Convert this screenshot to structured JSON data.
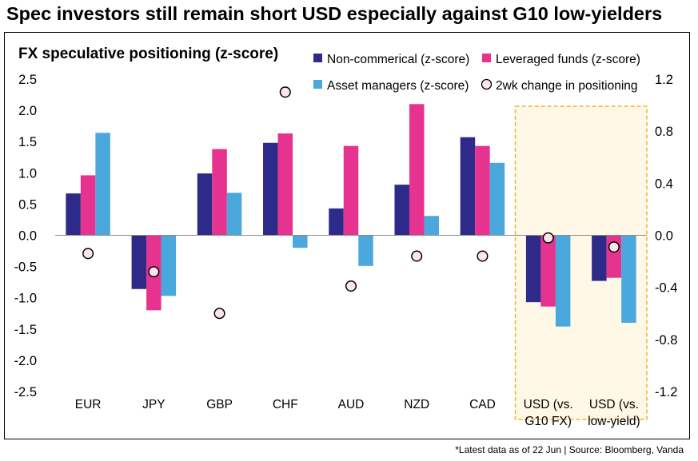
{
  "title": "Spec investors still remain short USD especially against G10 low-yielders",
  "footnote": "*Latest data as of 22 Jun | Source: Bloomberg, Vanda",
  "chart_data": {
    "type": "bar",
    "title": "FX speculative positioning (z-score)",
    "categories": [
      "EUR",
      "JPY",
      "GBP",
      "CHF",
      "AUD",
      "NZD",
      "CAD",
      "USD (vs. G10 FX)",
      "USD (vs. low-yield)"
    ],
    "category_lines": [
      [
        "EUR"
      ],
      [
        "JPY"
      ],
      [
        "GBP"
      ],
      [
        "CHF"
      ],
      [
        "AUD"
      ],
      [
        "NZD"
      ],
      [
        "CAD"
      ],
      [
        "USD (vs.",
        "G10 FX)"
      ],
      [
        "USD (vs.",
        "low-yield)"
      ]
    ],
    "series": [
      {
        "name": "Non-commerical (z-score)",
        "color": "#2e2a8a",
        "axis": "left",
        "values": [
          0.67,
          -0.86,
          0.99,
          1.48,
          0.43,
          0.81,
          1.57,
          -1.07,
          -0.73
        ]
      },
      {
        "name": "Leveraged funds (z-score)",
        "color": "#e5338f",
        "axis": "left",
        "values": [
          0.96,
          -1.2,
          1.38,
          1.63,
          1.43,
          2.1,
          1.43,
          -1.14,
          -0.68
        ]
      },
      {
        "name": "Asset managers (z-score)",
        "color": "#4ba8dc",
        "axis": "left",
        "values": [
          1.64,
          -0.97,
          0.68,
          -0.2,
          -0.49,
          0.31,
          1.16,
          -1.46,
          -1.4
        ]
      }
    ],
    "markers": {
      "name": "2wk change in positioning",
      "axis": "right",
      "values": [
        -0.14,
        -0.28,
        -0.6,
        1.1,
        -0.39,
        -0.16,
        -0.16,
        -0.02,
        -0.09
      ]
    },
    "left_axis": {
      "ylim": [
        -2.5,
        2.5
      ],
      "ticks": [
        "2.5",
        "2.0",
        "1.5",
        "1.0",
        "0.5",
        "0.0",
        "-0.5",
        "-1.0",
        "-1.5",
        "-2.0",
        "-2.5"
      ]
    },
    "right_axis": {
      "ylim": [
        -1.2,
        1.2
      ],
      "ticks": [
        "1.2",
        "0.8",
        "0.4",
        "0.0",
        "-0.4",
        "-0.8",
        "-1.2"
      ]
    },
    "highlight": {
      "from_category": 7,
      "to_category": 8,
      "fill": "#fff8e6",
      "stroke": "#f2b32c"
    },
    "legend": "top-right",
    "grid": false
  }
}
